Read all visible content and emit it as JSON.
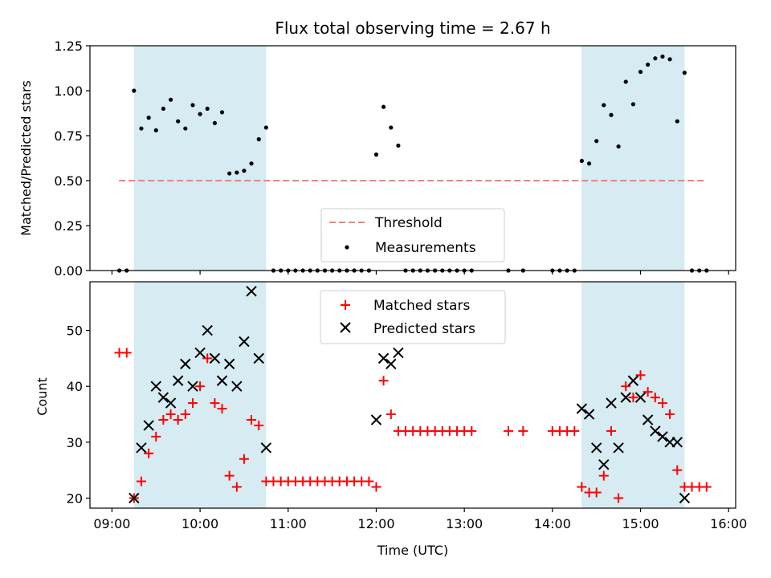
{
  "chart_data": [
    {
      "type": "scatter",
      "title": "Flux total observing time = 2.67 h",
      "xlabel": "",
      "ylabel": "Matched/Predicted stars",
      "xlim": [
        8.75,
        16.08
      ],
      "ylim": [
        0,
        1.25
      ],
      "yticks": [
        "0.00",
        "0.25",
        "0.50",
        "0.75",
        "1.00",
        "1.25"
      ],
      "shaded_intervals": [
        [
          9.25,
          10.75
        ],
        [
          14.33,
          15.5
        ]
      ],
      "threshold": {
        "name": "Threshold",
        "value": 0.5,
        "x_range": [
          9.08,
          15.75
        ],
        "color": "#f08080"
      },
      "series": [
        {
          "name": "Measurements",
          "color": "#000000",
          "points": [
            [
              9.083,
              0.0
            ],
            [
              9.167,
              0.0
            ],
            [
              9.25,
              1.0
            ],
            [
              9.333,
              0.79
            ],
            [
              9.417,
              0.85
            ],
            [
              9.5,
              0.78
            ],
            [
              9.583,
              0.9
            ],
            [
              9.667,
              0.95
            ],
            [
              9.75,
              0.83
            ],
            [
              9.833,
              0.79
            ],
            [
              9.917,
              0.92
            ],
            [
              10.0,
              0.87
            ],
            [
              10.083,
              0.9
            ],
            [
              10.167,
              0.82
            ],
            [
              10.25,
              0.88
            ],
            [
              10.333,
              0.54
            ],
            [
              10.417,
              0.545
            ],
            [
              10.5,
              0.555
            ],
            [
              10.583,
              0.595
            ],
            [
              10.667,
              0.73
            ],
            [
              10.75,
              0.795
            ],
            [
              10.833,
              0.0
            ],
            [
              10.917,
              0.0
            ],
            [
              11.0,
              0.0
            ],
            [
              11.083,
              0.0
            ],
            [
              11.167,
              0.0
            ],
            [
              11.25,
              0.0
            ],
            [
              11.333,
              0.0
            ],
            [
              11.417,
              0.0
            ],
            [
              11.5,
              0.0
            ],
            [
              11.583,
              0.0
            ],
            [
              11.667,
              0.0
            ],
            [
              11.75,
              0.0
            ],
            [
              11.833,
              0.0
            ],
            [
              11.917,
              0.0
            ],
            [
              12.0,
              0.645
            ],
            [
              12.083,
              0.91
            ],
            [
              12.167,
              0.795
            ],
            [
              12.25,
              0.695
            ],
            [
              12.333,
              0.0
            ],
            [
              12.417,
              0.0
            ],
            [
              12.5,
              0.0
            ],
            [
              12.583,
              0.0
            ],
            [
              12.667,
              0.0
            ],
            [
              12.75,
              0.0
            ],
            [
              12.833,
              0.0
            ],
            [
              12.917,
              0.0
            ],
            [
              13.0,
              0.0
            ],
            [
              13.083,
              0.0
            ],
            [
              13.5,
              0.0
            ],
            [
              13.667,
              0.0
            ],
            [
              14.0,
              0.0
            ],
            [
              14.083,
              0.0
            ],
            [
              14.167,
              0.0
            ],
            [
              14.25,
              0.0
            ],
            [
              14.333,
              0.61
            ],
            [
              14.417,
              0.595
            ],
            [
              14.5,
              0.72
            ],
            [
              14.583,
              0.92
            ],
            [
              14.667,
              0.865
            ],
            [
              14.75,
              0.69
            ],
            [
              14.833,
              1.05
            ],
            [
              14.917,
              0.925
            ],
            [
              15.0,
              1.105
            ],
            [
              15.083,
              1.145
            ],
            [
              15.167,
              1.18
            ],
            [
              15.25,
              1.19
            ],
            [
              15.333,
              1.175
            ],
            [
              15.417,
              0.83
            ],
            [
              15.5,
              1.1
            ],
            [
              15.583,
              0.0
            ],
            [
              15.667,
              0.0
            ],
            [
              15.75,
              0.0
            ]
          ]
        }
      ],
      "legend": {
        "position": "lower-center",
        "entries": [
          "Threshold",
          "Measurements"
        ]
      },
      "shade_color": "#add8e6"
    },
    {
      "type": "scatter",
      "title": "",
      "xlabel": "Time (UTC)",
      "ylabel": "Count",
      "xlim": [
        8.75,
        16.08
      ],
      "ylim": [
        18.2,
        58.7
      ],
      "xticks": [
        {
          "v": 9,
          "label": "09:00"
        },
        {
          "v": 10,
          "label": "10:00"
        },
        {
          "v": 11,
          "label": "11:00"
        },
        {
          "v": 12,
          "label": "12:00"
        },
        {
          "v": 13,
          "label": "13:00"
        },
        {
          "v": 14,
          "label": "14:00"
        },
        {
          "v": 15,
          "label": "15:00"
        },
        {
          "v": 16,
          "label": "16:00"
        }
      ],
      "yticks": [
        {
          "v": 20,
          "label": "20"
        },
        {
          "v": 30,
          "label": "30"
        },
        {
          "v": 40,
          "label": "40"
        },
        {
          "v": 50,
          "label": "50"
        }
      ],
      "shaded_intervals": [
        [
          9.25,
          10.75
        ],
        [
          14.33,
          15.5
        ]
      ],
      "series": [
        {
          "name": "Matched stars",
          "marker": "plus",
          "color": "#ff0000",
          "points": [
            [
              9.083,
              46
            ],
            [
              9.167,
              46
            ],
            [
              9.25,
              20
            ],
            [
              9.333,
              23
            ],
            [
              9.417,
              28
            ],
            [
              9.5,
              31
            ],
            [
              9.583,
              34
            ],
            [
              9.667,
              35
            ],
            [
              9.75,
              34
            ],
            [
              9.833,
              35
            ],
            [
              9.917,
              37
            ],
            [
              10.0,
              40
            ],
            [
              10.083,
              45
            ],
            [
              10.167,
              37
            ],
            [
              10.25,
              36
            ],
            [
              10.333,
              24
            ],
            [
              10.417,
              22
            ],
            [
              10.5,
              27
            ],
            [
              10.583,
              34
            ],
            [
              10.667,
              33
            ],
            [
              10.75,
              23
            ],
            [
              10.833,
              23
            ],
            [
              10.917,
              23
            ],
            [
              11.0,
              23
            ],
            [
              11.083,
              23
            ],
            [
              11.167,
              23
            ],
            [
              11.25,
              23
            ],
            [
              11.333,
              23
            ],
            [
              11.417,
              23
            ],
            [
              11.5,
              23
            ],
            [
              11.583,
              23
            ],
            [
              11.667,
              23
            ],
            [
              11.75,
              23
            ],
            [
              11.833,
              23
            ],
            [
              11.917,
              23
            ],
            [
              12.0,
              22
            ],
            [
              12.083,
              41
            ],
            [
              12.167,
              35
            ],
            [
              12.25,
              32
            ],
            [
              12.333,
              32
            ],
            [
              12.417,
              32
            ],
            [
              12.5,
              32
            ],
            [
              12.583,
              32
            ],
            [
              12.667,
              32
            ],
            [
              12.75,
              32
            ],
            [
              12.833,
              32
            ],
            [
              12.917,
              32
            ],
            [
              13.0,
              32
            ],
            [
              13.083,
              32
            ],
            [
              13.5,
              32
            ],
            [
              13.667,
              32
            ],
            [
              14.0,
              32
            ],
            [
              14.083,
              32
            ],
            [
              14.167,
              32
            ],
            [
              14.25,
              32
            ],
            [
              14.333,
              22
            ],
            [
              14.417,
              21
            ],
            [
              14.5,
              21
            ],
            [
              14.583,
              24
            ],
            [
              14.667,
              32
            ],
            [
              14.75,
              20
            ],
            [
              14.833,
              40
            ],
            [
              14.917,
              38
            ],
            [
              15.0,
              42
            ],
            [
              15.083,
              39
            ],
            [
              15.167,
              38
            ],
            [
              15.25,
              37
            ],
            [
              15.333,
              35
            ],
            [
              15.417,
              25
            ],
            [
              15.5,
              22
            ],
            [
              15.583,
              22
            ],
            [
              15.667,
              22
            ],
            [
              15.75,
              22
            ]
          ]
        },
        {
          "name": "Predicted stars",
          "marker": "x",
          "color": "#000000",
          "points": [
            [
              9.25,
              20
            ],
            [
              9.333,
              29
            ],
            [
              9.417,
              33
            ],
            [
              9.5,
              40
            ],
            [
              9.583,
              38
            ],
            [
              9.667,
              37
            ],
            [
              9.75,
              41
            ],
            [
              9.833,
              44
            ],
            [
              9.917,
              40
            ],
            [
              10.0,
              46
            ],
            [
              10.083,
              50
            ],
            [
              10.167,
              45
            ],
            [
              10.25,
              41
            ],
            [
              10.333,
              44
            ],
            [
              10.417,
              40
            ],
            [
              10.5,
              48
            ],
            [
              10.583,
              57
            ],
            [
              10.667,
              45
            ],
            [
              10.75,
              29
            ],
            [
              12.0,
              34
            ],
            [
              12.083,
              45
            ],
            [
              12.167,
              44
            ],
            [
              12.25,
              46
            ],
            [
              14.333,
              36
            ],
            [
              14.417,
              35
            ],
            [
              14.5,
              29
            ],
            [
              14.583,
              26
            ],
            [
              14.667,
              37
            ],
            [
              14.75,
              29
            ],
            [
              14.833,
              38
            ],
            [
              14.917,
              41
            ],
            [
              15.0,
              38
            ],
            [
              15.083,
              34
            ],
            [
              15.167,
              32
            ],
            [
              15.25,
              31
            ],
            [
              15.333,
              30
            ],
            [
              15.417,
              30
            ],
            [
              15.5,
              20
            ]
          ]
        }
      ],
      "legend": {
        "position": "upper-center",
        "entries": [
          "Matched stars",
          "Predicted stars"
        ]
      },
      "shade_color": "#add8e6"
    }
  ]
}
